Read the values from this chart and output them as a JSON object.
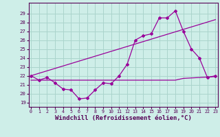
{
  "background_color": "#ceeee8",
  "grid_color": "#aad4cc",
  "line_color": "#990099",
  "xlabel": "Windchill (Refroidissement éolien,°C)",
  "xlabel_fontsize": 6.5,
  "ylabel_ticks": [
    19,
    20,
    21,
    22,
    23,
    24,
    25,
    26,
    27,
    28,
    29
  ],
  "xticks": [
    0,
    1,
    2,
    3,
    4,
    5,
    6,
    7,
    8,
    9,
    10,
    11,
    12,
    13,
    14,
    15,
    16,
    17,
    18,
    19,
    20,
    21,
    22,
    23
  ],
  "series1_x": [
    0,
    1,
    2,
    3,
    4,
    5,
    6,
    7,
    8,
    9,
    10,
    11,
    12,
    13,
    14,
    15,
    16,
    17,
    18,
    19,
    20,
    21,
    22,
    23
  ],
  "series1_y": [
    22.0,
    21.5,
    21.8,
    21.2,
    20.5,
    20.4,
    19.4,
    19.5,
    20.4,
    21.2,
    21.1,
    22.0,
    23.3,
    26.0,
    26.5,
    26.7,
    28.5,
    28.5,
    29.3,
    27.0,
    25.0,
    24.0,
    21.8,
    22.0
  ],
  "series2_x": [
    0,
    23
  ],
  "series2_y": [
    22.0,
    28.3
  ],
  "series3_x": [
    0,
    9,
    10,
    18,
    19,
    23
  ],
  "series3_y": [
    21.5,
    21.5,
    21.5,
    21.5,
    21.7,
    21.9
  ],
  "ylim": [
    18.5,
    30.2
  ],
  "xlim": [
    -0.3,
    23.3
  ]
}
